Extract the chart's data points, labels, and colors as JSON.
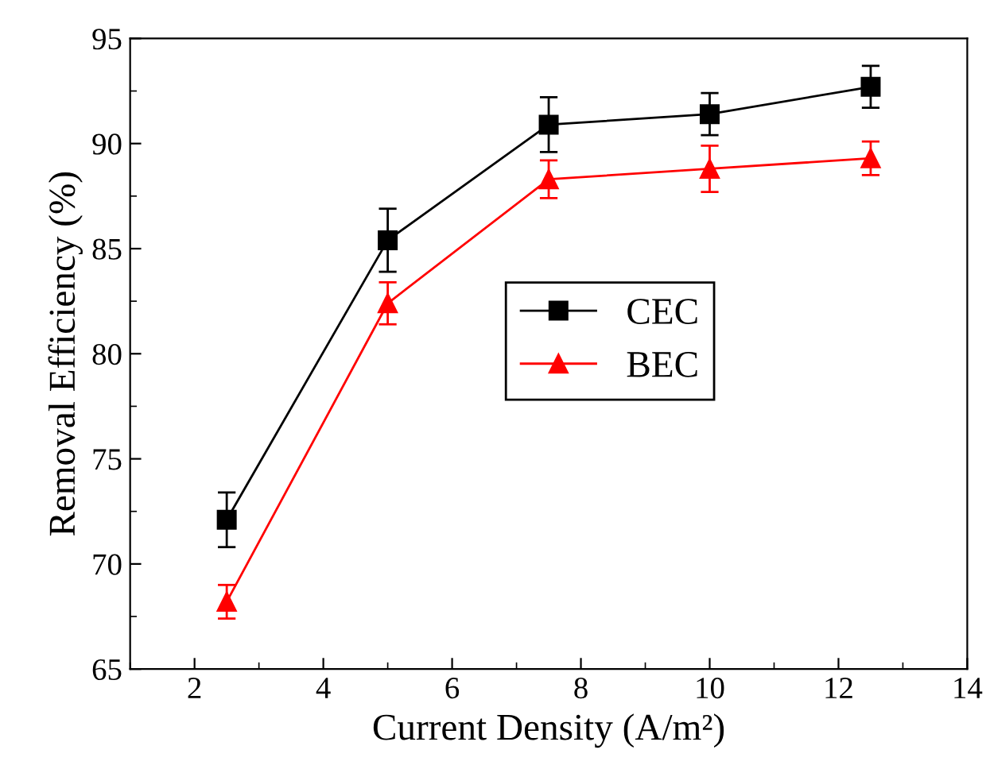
{
  "chart_data": {
    "type": "line",
    "xlabel": "Current Density (A/m²)",
    "ylabel": "Removal Efficiency (%)",
    "x": [
      2.5,
      5,
      7.5,
      10,
      12.5
    ],
    "series": [
      {
        "name": "CEC",
        "color": "#000000",
        "marker": "square",
        "values": [
          72.1,
          85.4,
          90.9,
          91.4,
          92.7
        ],
        "errors": [
          1.3,
          1.5,
          1.3,
          1.0,
          1.0
        ]
      },
      {
        "name": "BEC",
        "color": "#ff0000",
        "marker": "triangle",
        "values": [
          68.2,
          82.4,
          88.3,
          88.8,
          89.3
        ],
        "errors": [
          0.8,
          1.0,
          0.9,
          1.1,
          0.8
        ]
      }
    ],
    "xlim": [
      1,
      14
    ],
    "xticks": [
      2,
      4,
      6,
      8,
      10,
      12,
      14
    ],
    "ylim": [
      65,
      95
    ],
    "yticks": [
      65,
      70,
      75,
      80,
      85,
      90,
      95
    ],
    "grid": false,
    "legend": "right",
    "line_style": "solid"
  }
}
